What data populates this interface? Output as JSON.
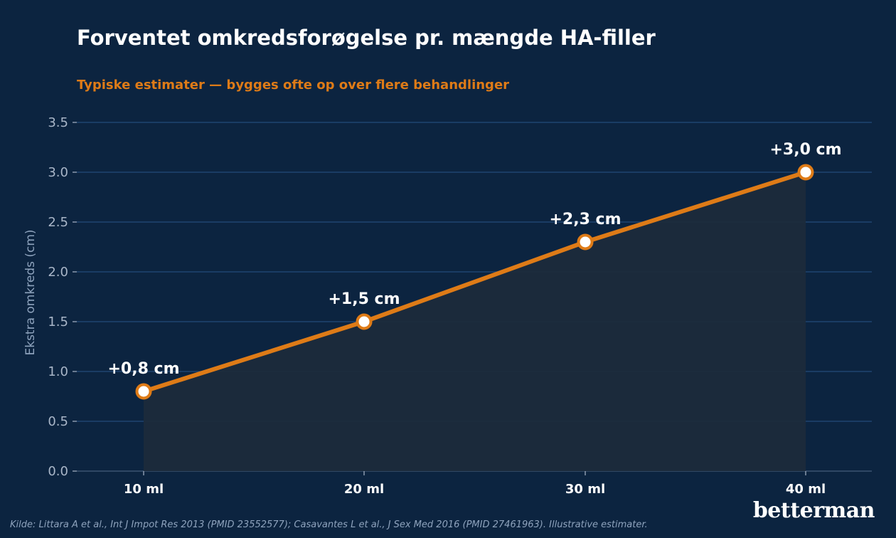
{
  "header": {
    "title": "Forventet omkredsforøgelse pr. mængde HA-filler",
    "subtitle": "Typiske estimater — bygges ofte op over flere behandlinger"
  },
  "footer": {
    "source": "Kilde: Littara A et al., Int J Impot Res 2013 (PMID 23552577); Casavantes L et al., J Sex Med 2016 (PMID 27461963). Illustrative estimater.",
    "brand": "betterman"
  },
  "colors": {
    "background": "#0c2440",
    "accent": "#de7b17",
    "grid": "#1e4570",
    "tick_text": "#a9b6c8",
    "area_fill": "#1c2b3b"
  },
  "chart_data": {
    "type": "line",
    "title": "Forventet omkredsforøgelse pr. mængde HA-filler",
    "subtitle": "Typiske estimater — bygges ofte op over flere behandlinger",
    "xlabel": "",
    "ylabel": "Ekstra omkreds (cm)",
    "categories": [
      "10 ml",
      "20 ml",
      "30 ml",
      "40 ml"
    ],
    "values": [
      0.8,
      1.5,
      2.3,
      3.0
    ],
    "data_labels": [
      "+0,8 cm",
      "+1,5 cm",
      "+2,3 cm",
      "+3,0 cm"
    ],
    "ylim": [
      0,
      3.5
    ],
    "yticks": [
      "0.0",
      "0.5",
      "1.0",
      "1.5",
      "2.0",
      "2.5",
      "3.0",
      "3.5"
    ],
    "grid": true,
    "area_under_line": true,
    "legend": "none"
  }
}
